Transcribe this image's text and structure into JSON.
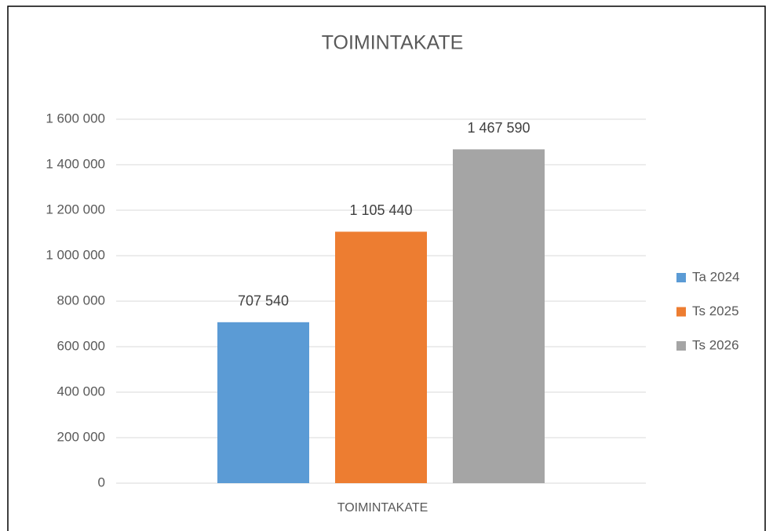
{
  "chart_data": {
    "type": "bar",
    "title": "TOIMINTAKATE",
    "categories": [
      "TOIMINTAKATE"
    ],
    "series": [
      {
        "name": "Ta 2024",
        "color": "#5b9bd5",
        "values": [
          707540
        ],
        "value_labels": [
          "707 540"
        ]
      },
      {
        "name": "Ts 2025",
        "color": "#ed7d31",
        "values": [
          1105440
        ],
        "value_labels": [
          "1 105 440"
        ]
      },
      {
        "name": "Ts 2026",
        "color": "#a5a5a5",
        "values": [
          1467590
        ],
        "value_labels": [
          "1 467 590"
        ]
      }
    ],
    "ylim": [
      0,
      1600000
    ],
    "yticks": [
      0,
      {
        "value": 200000,
        "label": "200 000"
      },
      {
        "value": 400000,
        "label": "400 000"
      },
      {
        "value": 600000,
        "label": "600 000"
      },
      {
        "value": 800000,
        "label": "800 000"
      },
      {
        "value": 1000000,
        "label": "1 000 000"
      },
      {
        "value": 1200000,
        "label": "1 200 000"
      },
      {
        "value": 1400000,
        "label": "1 400 000"
      },
      {
        "value": 1600000,
        "label": "1 600 000"
      }
    ],
    "grid": true,
    "legend": "right"
  }
}
